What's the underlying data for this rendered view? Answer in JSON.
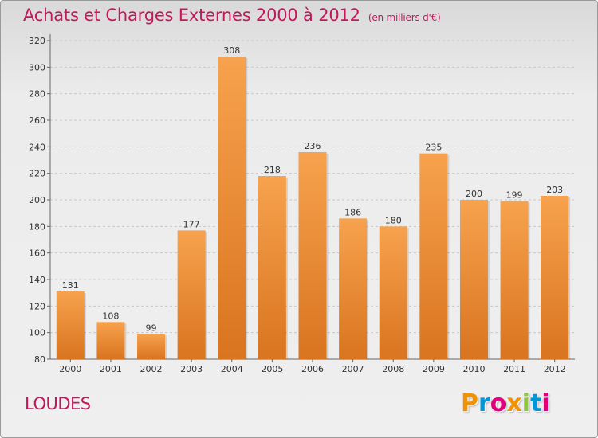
{
  "chart_data": {
    "type": "bar",
    "title": "Achats et Charges Externes 2000 à 2012",
    "subtitle": "(en milliers d'€)",
    "categories": [
      "2000",
      "2001",
      "2002",
      "2003",
      "2004",
      "2005",
      "2006",
      "2007",
      "2008",
      "2009",
      "2010",
      "2011",
      "2012"
    ],
    "values": [
      131,
      108,
      99,
      177,
      308,
      218,
      236,
      186,
      180,
      235,
      200,
      199,
      203
    ],
    "ylim": [
      80,
      320
    ],
    "yticks": [
      80,
      100,
      120,
      140,
      160,
      180,
      200,
      220,
      240,
      260,
      280,
      300,
      320
    ],
    "grid": true,
    "bar_color_top": "#f7a24e",
    "bar_color_bottom": "#d9741f"
  },
  "footer": {
    "commune": "LOUDES",
    "logo_letters": [
      "P",
      "r",
      "o",
      "x",
      "i",
      "t",
      "i"
    ],
    "logo_colors": [
      "#f39200",
      "#0097d7",
      "#e2007a",
      "#f39200",
      "#8dc63f",
      "#0097d7",
      "#e2007a"
    ]
  }
}
